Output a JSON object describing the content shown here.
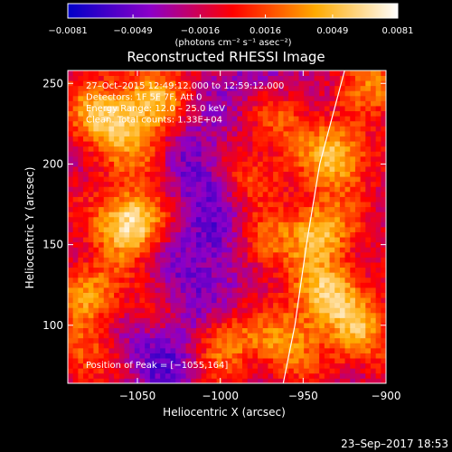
{
  "chart_data": {
    "type": "heatmap",
    "title": "Reconstructed RHESSI Image",
    "xlabel": "Heliocentric X (arcsec)",
    "ylabel": "Heliocentric Y (arcsec)",
    "xlim": [
      -1092,
      -900
    ],
    "ylim": [
      64,
      258
    ],
    "x_ticks": [
      -1050,
      -1000,
      -950,
      -900
    ],
    "x_tick_labels": [
      "−1050",
      "−1000",
      "−950",
      "−900"
    ],
    "y_ticks": [
      100,
      150,
      200,
      250
    ],
    "y_tick_labels": [
      "100",
      "150",
      "200",
      "250"
    ],
    "colorbar": {
      "ticks": [
        -0.0081,
        -0.0049,
        -0.0016,
        0.0016,
        0.0049,
        0.0081
      ],
      "tick_labels": [
        "−0.0081",
        "−0.0049",
        "−0.0016",
        "0.0016",
        "0.0049",
        "0.0081"
      ],
      "unit_label": "(photons cm⁻² s⁻¹ asec⁻²)",
      "range": [
        -0.0081,
        0.0081
      ],
      "colors": [
        "#0000c8",
        "#8c00c8",
        "#ff0000",
        "#ffaa00",
        "#ffffff"
      ]
    },
    "info_lines": [
      "27–Oct–2015 12:49:12.000 to 12:59:12.000",
      "Detectors: 1F 5F 7F, Att 0",
      "Energy Range: 12.0 – 25.0 keV",
      "Clean.  Total counts: 1.33E+04"
    ],
    "peak_label": "Position of Peak = [−1055,164]",
    "peak": [
      -1055,
      164
    ],
    "limb_curve": [
      [
        -962,
        64
      ],
      [
        -955,
        100
      ],
      [
        -948,
        150
      ],
      [
        -940,
        200
      ],
      [
        -925,
        258
      ]
    ],
    "limb_color": "#ffffff",
    "background_color": "#000000",
    "grid_cells": [
      62,
      62
    ],
    "hot_regions": [
      {
        "x": -1055,
        "y": 164,
        "peak": 1.0
      },
      {
        "x": -1070,
        "y": 230,
        "peak": 0.8
      },
      {
        "x": -1040,
        "y": 240,
        "peak": 0.6
      },
      {
        "x": -1080,
        "y": 120,
        "peak": 0.55
      },
      {
        "x": -1040,
        "y": 110,
        "peak": 0.5
      },
      {
        "x": -1000,
        "y": 90,
        "peak": 0.6
      },
      {
        "x": -1045,
        "y": 205,
        "peak": 0.45
      },
      {
        "x": -985,
        "y": 195,
        "peak": 0.5
      },
      {
        "x": -975,
        "y": 150,
        "peak": 0.55
      },
      {
        "x": -965,
        "y": 230,
        "peak": 0.5
      },
      {
        "x": -930,
        "y": 205,
        "peak": 0.75
      },
      {
        "x": -940,
        "y": 160,
        "peak": 0.7
      },
      {
        "x": -935,
        "y": 120,
        "peak": 0.8
      },
      {
        "x": -915,
        "y": 95,
        "peak": 0.55
      },
      {
        "x": -960,
        "y": 90,
        "peak": 0.55
      },
      {
        "x": -1080,
        "y": 80,
        "peak": 0.4
      },
      {
        "x": -905,
        "y": 250,
        "peak": 0.45
      }
    ],
    "cold_regions": [
      {
        "x": -1012,
        "y": 200,
        "depth": 0.9
      },
      {
        "x": -1000,
        "y": 150,
        "depth": 0.8
      },
      {
        "x": -1025,
        "y": 110,
        "depth": 0.8
      },
      {
        "x": -1040,
        "y": 80,
        "depth": 0.7
      },
      {
        "x": -975,
        "y": 250,
        "depth": 0.6
      }
    ]
  },
  "footer": {
    "timestamp": "23–Sep–2017 18:53"
  }
}
